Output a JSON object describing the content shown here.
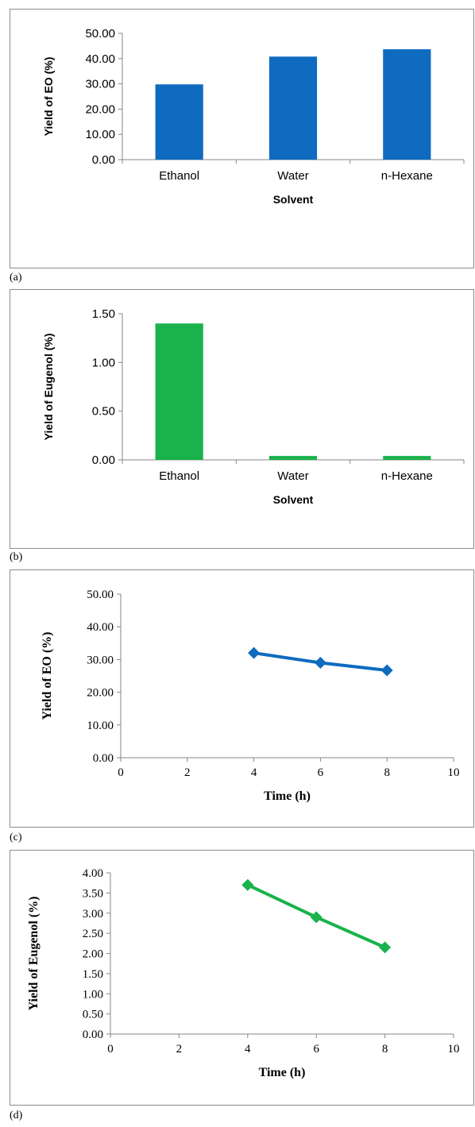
{
  "panels": [
    {
      "label": "(a)"
    },
    {
      "label": "(b)"
    },
    {
      "label": "(c)"
    },
    {
      "label": "(d)"
    }
  ],
  "chart_data": [
    {
      "type": "bar",
      "categories": [
        "Ethanol",
        "Water",
        "n-Hexane"
      ],
      "values": [
        29.8,
        40.8,
        43.7
      ],
      "xlabel": "Solvent",
      "ylabel": "Yield of EO (%)",
      "ylim": [
        0,
        50
      ],
      "yticks": [
        "0.00",
        "10.00",
        "20.00",
        "30.00",
        "40.00",
        "50.00"
      ],
      "color": "#0e6bbf",
      "grid": false
    },
    {
      "type": "bar",
      "categories": [
        "Ethanol",
        "Water",
        "n-Hexane"
      ],
      "values": [
        1.4,
        0.04,
        0.04
      ],
      "xlabel": "Solvent",
      "ylabel": "Yield of Eugenol (%)",
      "ylim": [
        0,
        1.5
      ],
      "yticks": [
        "0.00",
        "0.50",
        "1.00",
        "1.50"
      ],
      "color": "#19b24b",
      "grid": false
    },
    {
      "type": "line",
      "x": [
        4,
        6,
        8
      ],
      "y": [
        32.0,
        29.0,
        26.7
      ],
      "xlabel": "Time (h)",
      "ylabel": "Yield of EO (%)",
      "xlim": [
        0,
        10
      ],
      "ylim": [
        0,
        50
      ],
      "xticks": [
        "0",
        "2",
        "4",
        "6",
        "8",
        "10"
      ],
      "yticks": [
        "0.00",
        "10.00",
        "20.00",
        "30.00",
        "40.00",
        "50.00"
      ],
      "marker": "diamond",
      "color": "#0e6bbf",
      "grid": false
    },
    {
      "type": "line",
      "x": [
        4,
        6,
        8
      ],
      "y": [
        3.7,
        2.9,
        2.15
      ],
      "xlabel": "Time (h)",
      "ylabel": "Yield of Eugenol (%)",
      "xlim": [
        0,
        10
      ],
      "ylim": [
        0,
        4
      ],
      "xticks": [
        "0",
        "2",
        "4",
        "6",
        "8",
        "10"
      ],
      "yticks": [
        "0.00",
        "0.50",
        "1.00",
        "1.50",
        "2.00",
        "2.50",
        "3.00",
        "3.50",
        "4.00"
      ],
      "marker": "diamond",
      "color": "#19b24b",
      "grid": false
    }
  ]
}
